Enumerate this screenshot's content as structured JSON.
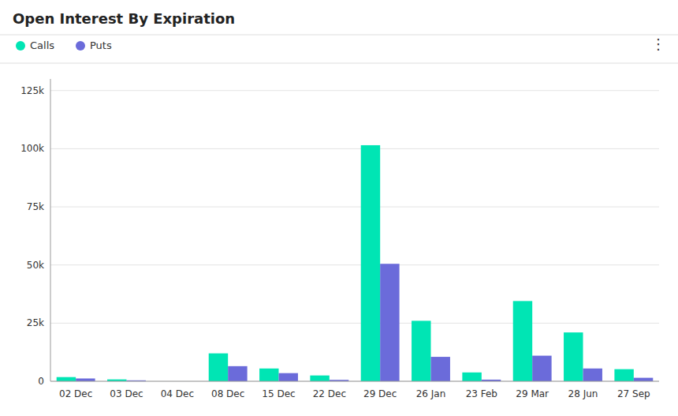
{
  "chart_data": {
    "type": "bar",
    "title": "Open Interest By Expiration",
    "categories": [
      "02 Dec",
      "03 Dec",
      "04 Dec",
      "08 Dec",
      "15 Dec",
      "22 Dec",
      "29 Dec",
      "26 Jan",
      "23 Feb",
      "29 Mar",
      "28 Jun",
      "27 Sep"
    ],
    "series": [
      {
        "name": "Calls",
        "color": "#00e5b4",
        "values": [
          1800,
          800,
          0,
          12000,
          5500,
          2500,
          101500,
          26000,
          3800,
          34500,
          21000,
          5200
        ]
      },
      {
        "name": "Puts",
        "color": "#6b6bda",
        "values": [
          1200,
          400,
          0,
          6500,
          3500,
          600,
          50500,
          10500,
          700,
          11000,
          5500,
          1500
        ]
      }
    ],
    "ylim": [
      0,
      130000
    ],
    "yticks": [
      0,
      {
        "value": 25000,
        "label": "25k"
      },
      {
        "value": 50000,
        "label": "50k"
      },
      {
        "value": 75000,
        "label": "75k"
      },
      {
        "value": 100000,
        "label": "100k"
      },
      {
        "value": 125000,
        "label": "125k"
      }
    ],
    "grid": true,
    "legend": "upper left",
    "annotations": [
      "⋮"
    ]
  }
}
